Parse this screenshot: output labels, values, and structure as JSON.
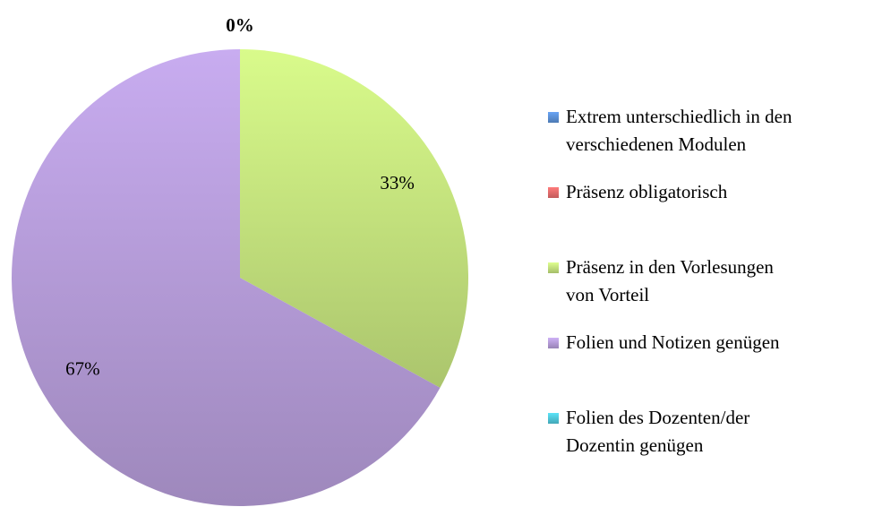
{
  "chart_data": {
    "type": "pie",
    "categories": [
      "Extrem unterschiedlich in den verschiedenen Modulen",
      "Präsenz obligatorisch",
      "Präsenz in den Vorlesungen von Vorteil",
      "Folien und Notizen genügen",
      "Folien des Dozenten/der Dozentin genügen"
    ],
    "values": [
      0,
      0,
      33,
      67,
      0
    ],
    "value_labels": [
      "0%",
      null,
      "33%",
      "67%",
      null
    ],
    "colors": [
      "#5b8fd4",
      "#e46b6b",
      "#c2e07c",
      "#b39ad6",
      "#4fc6d8"
    ],
    "legend": "right"
  }
}
